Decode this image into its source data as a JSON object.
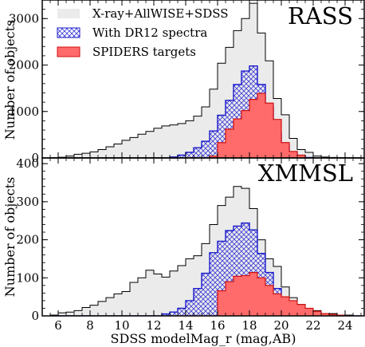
{
  "chart_data": {
    "type": "histogram",
    "xlabel": "SDSS modelMag_r (mag,AB)",
    "x_ticks": [
      6,
      8,
      10,
      12,
      14,
      16,
      18,
      20,
      22,
      24
    ],
    "xlim": [
      5,
      25.2
    ],
    "bin_edges": [
      5.5,
      6.0,
      6.5,
      7.0,
      7.5,
      8.0,
      8.5,
      9.0,
      9.5,
      10.0,
      10.5,
      11.0,
      11.5,
      12.0,
      12.5,
      13.0,
      13.5,
      14.0,
      14.5,
      15.0,
      15.5,
      16.0,
      16.5,
      17.0,
      17.5,
      18.0,
      18.5,
      19.0,
      19.5,
      20.0,
      20.5,
      21.0,
      21.5,
      22.0,
      22.5,
      23.0,
      23.5,
      24.0,
      24.5,
      25.0
    ],
    "legend": {
      "placement": "upper-left",
      "entries": [
        {
          "key": "all",
          "label": "X-ray+AllWISE+SDSS"
        },
        {
          "key": "dr12",
          "label": "With DR12 spectra"
        },
        {
          "key": "spiders",
          "label": "SPIDERS targets"
        }
      ]
    },
    "colors": {
      "all_fill": "#ebebeb",
      "all_line": "#000000",
      "dr12_line": "#1a1acc",
      "dr12_hatch": "#3a3ad6",
      "spiders_fill": "#ff6a6a",
      "spiders_line": "#d01010"
    },
    "panels": [
      {
        "title": "RASS",
        "ylabel": "Number of objects",
        "ylim": [
          0,
          3400
        ],
        "y_ticks": [
          0,
          1000,
          2000,
          3000
        ],
        "series": [
          {
            "key": "all",
            "values": [
              5,
              15,
              40,
              80,
              100,
              130,
              180,
              240,
              300,
              380,
              440,
              510,
              570,
              640,
              690,
              710,
              740,
              800,
              900,
              1100,
              1480,
              2040,
              2380,
              2740,
              3000,
              3330,
              2690,
              2090,
              1280,
              930,
              420,
              180,
              120,
              40,
              20,
              10,
              5,
              0,
              0
            ]
          },
          {
            "key": "dr12",
            "values": [
              0,
              0,
              0,
              0,
              0,
              0,
              0,
              0,
              0,
              0,
              0,
              0,
              0,
              0,
              0,
              20,
              60,
              120,
              220,
              360,
              580,
              920,
              1240,
              1580,
              1870,
              1980,
              1580,
              1100,
              540,
              280,
              110,
              40,
              10,
              0,
              0,
              0,
              0,
              0,
              0
            ]
          },
          {
            "key": "spiders",
            "values": [
              0,
              0,
              0,
              0,
              0,
              0,
              0,
              0,
              0,
              0,
              0,
              0,
              0,
              0,
              0,
              0,
              0,
              0,
              0,
              0,
              40,
              330,
              620,
              840,
              1020,
              1260,
              1390,
              1180,
              830,
              330,
              140,
              60,
              0,
              0,
              0,
              0,
              0,
              0,
              0
            ]
          }
        ]
      },
      {
        "title": "XMMSL",
        "ylabel": "Number of objects",
        "ylim": [
          0,
          415
        ],
        "y_ticks": [
          0,
          100,
          200,
          300,
          400
        ],
        "series": [
          {
            "key": "all",
            "values": [
              2,
              8,
              10,
              14,
              22,
              28,
              38,
              48,
              58,
              64,
              88,
              100,
              120,
              110,
              102,
              118,
              132,
              150,
              158,
              190,
              240,
              290,
              312,
              340,
              335,
              282,
              200,
              150,
              130,
              76,
              48,
              30,
              20,
              14,
              6,
              6,
              2,
              2,
              0
            ]
          },
          {
            "key": "dr12",
            "values": [
              0,
              0,
              0,
              0,
              0,
              0,
              0,
              0,
              0,
              0,
              0,
              0,
              0,
              0,
              5,
              10,
              20,
              40,
              72,
              112,
              166,
              196,
              224,
              236,
              244,
              226,
              164,
              114,
              72,
              30,
              10,
              5,
              0,
              0,
              0,
              0,
              0,
              0,
              0
            ]
          },
          {
            "key": "spiders",
            "values": [
              0,
              0,
              0,
              0,
              0,
              0,
              0,
              0,
              0,
              0,
              0,
              0,
              0,
              0,
              0,
              0,
              0,
              0,
              0,
              0,
              0,
              66,
              90,
              104,
              106,
              114,
              100,
              80,
              58,
              50,
              40,
              30,
              20,
              12,
              6,
              4,
              2,
              0,
              0
            ]
          }
        ]
      }
    ]
  }
}
